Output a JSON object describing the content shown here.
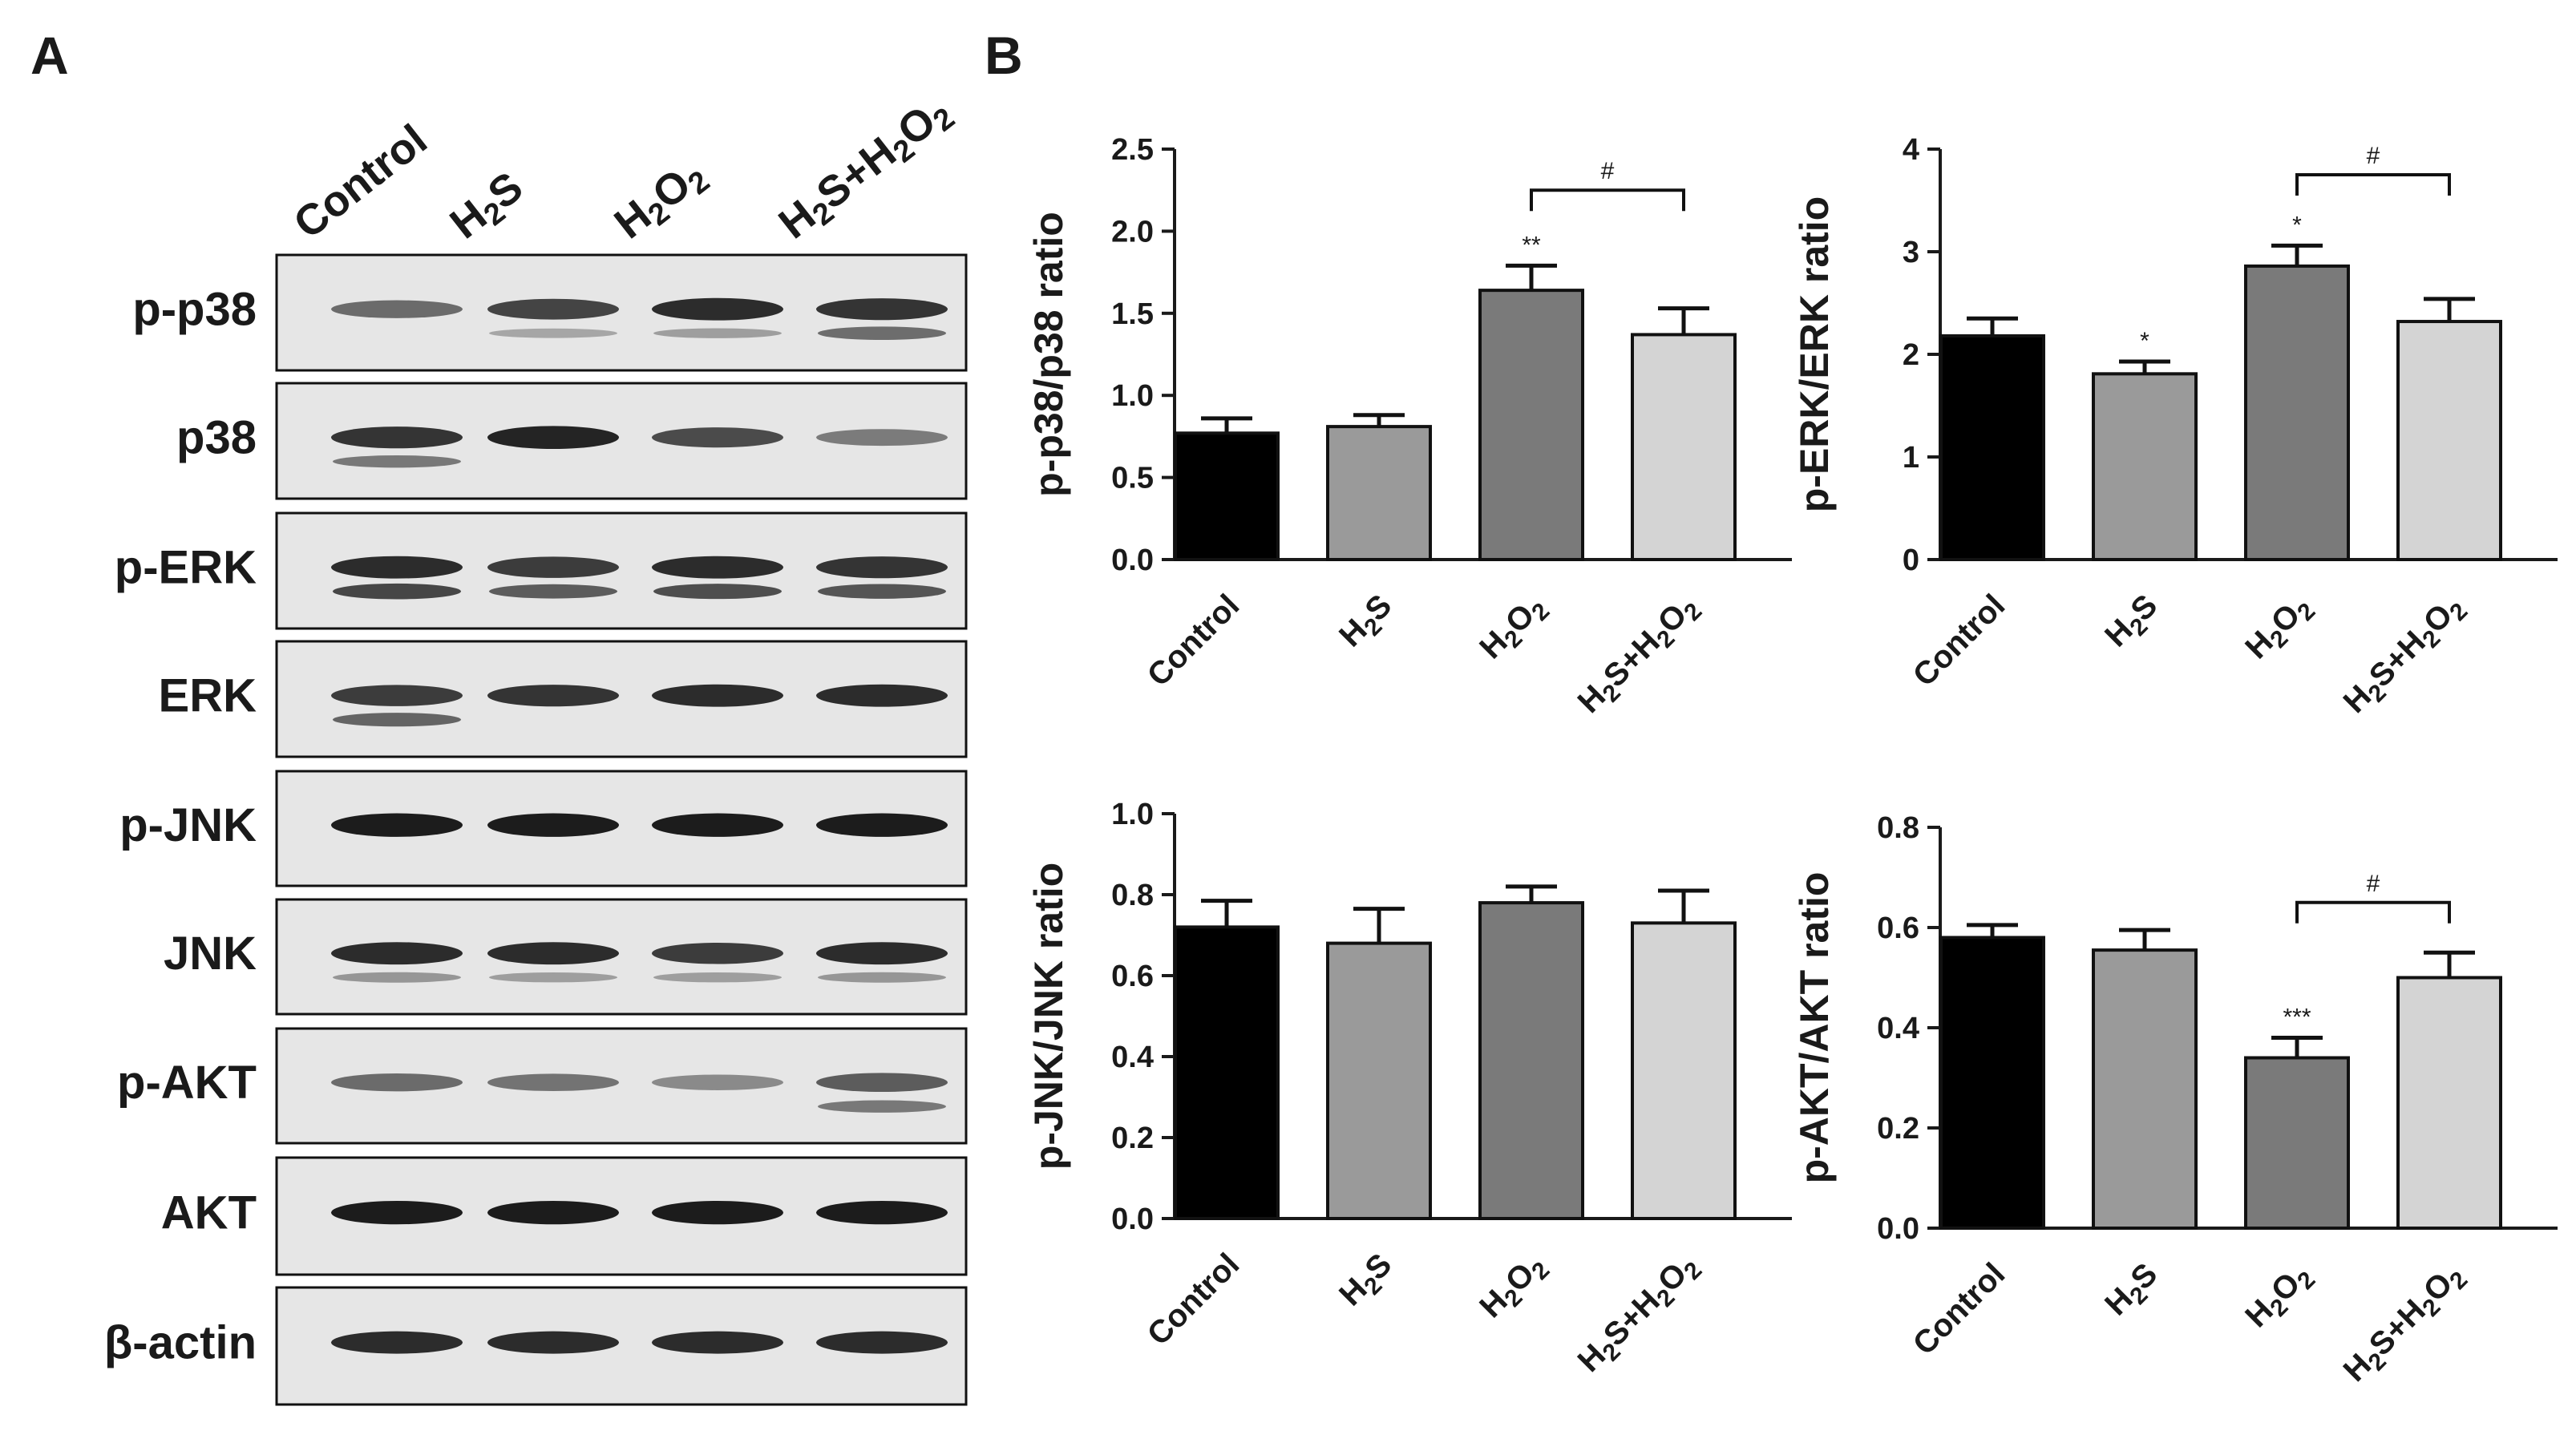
{
  "figure": {
    "panel_a_letter": "A",
    "panel_b_letter": "B"
  },
  "blot": {
    "lanes": [
      "Control",
      "H2S",
      "H2O2",
      "H2S+H2O2"
    ],
    "rows": [
      {
        "label": "p-p38",
        "intensity": [
          0.45,
          0.7,
          0.85,
          0.8
        ],
        "lower_band": [
          0,
          0.15,
          0.2,
          0.55
        ]
      },
      {
        "label": "p38",
        "intensity": [
          0.8,
          0.9,
          0.65,
          0.35
        ],
        "lower_band": [
          0.45,
          0,
          0,
          0
        ]
      },
      {
        "label": "p-ERK",
        "intensity": [
          0.85,
          0.75,
          0.85,
          0.8
        ],
        "lower_band": [
          0.8,
          0.65,
          0.75,
          0.7
        ]
      },
      {
        "label": "ERK",
        "intensity": [
          0.75,
          0.8,
          0.85,
          0.85
        ],
        "lower_band": [
          0.6,
          0,
          0,
          0
        ]
      },
      {
        "label": "p-JNK",
        "intensity": [
          0.95,
          0.95,
          0.95,
          0.95
        ],
        "lower_band": [
          0,
          0,
          0,
          0
        ]
      },
      {
        "label": "JNK",
        "intensity": [
          0.85,
          0.85,
          0.75,
          0.85
        ],
        "lower_band": [
          0.25,
          0.2,
          0.2,
          0.25
        ]
      },
      {
        "label": "p-AKT",
        "intensity": [
          0.45,
          0.4,
          0.25,
          0.55
        ],
        "lower_band": [
          0,
          0,
          0,
          0.45
        ]
      },
      {
        "label": "AKT",
        "intensity": [
          0.95,
          0.95,
          0.95,
          0.95
        ],
        "lower_band": [
          0,
          0,
          0,
          0
        ]
      },
      {
        "label": "β-actin",
        "intensity": [
          0.85,
          0.85,
          0.85,
          0.85
        ],
        "lower_band": [
          0,
          0,
          0,
          0
        ]
      }
    ]
  },
  "colors": {
    "bar_fills": [
      "#000000",
      "#9a9a9a",
      "#7a7a7a",
      "#d4d4d4"
    ],
    "axis": "#1a1a1a",
    "blot_background": "#e6e6e6",
    "band": "#141414"
  },
  "chart_data": [
    {
      "type": "bar",
      "categories": [
        "Control",
        "H2S",
        "H2O2",
        "H2S+H2O2"
      ],
      "values": [
        0.77,
        0.81,
        1.64,
        1.37
      ],
      "errors": [
        0.09,
        0.07,
        0.15,
        0.16
      ],
      "ylabel": "p-p38/p38 ratio",
      "ylim": [
        0,
        2.5
      ],
      "yticks": [
        "0.0",
        "0.5",
        "1.0",
        "1.5",
        "2.0",
        "2.5"
      ],
      "significance": [
        "",
        "",
        "**",
        ""
      ],
      "comparisons": [
        {
          "from": 2,
          "to": 3,
          "label": "#",
          "y": 2.25
        }
      ]
    },
    {
      "type": "bar",
      "categories": [
        "Control",
        "H2S",
        "H2O2",
        "H2S+H2O2"
      ],
      "values": [
        2.18,
        1.81,
        2.86,
        2.32
      ],
      "errors": [
        0.17,
        0.12,
        0.2,
        0.22
      ],
      "ylabel": "p-ERK/ERK ratio",
      "ylim": [
        0,
        4
      ],
      "yticks": [
        "0",
        "1",
        "2",
        "3",
        "4"
      ],
      "significance": [
        "",
        "*",
        "*",
        ""
      ],
      "comparisons": [
        {
          "from": 2,
          "to": 3,
          "label": "#",
          "y": 3.75
        }
      ]
    },
    {
      "type": "bar",
      "categories": [
        "Control",
        "H2S",
        "H2O2",
        "H2S+H2O2"
      ],
      "values": [
        0.72,
        0.68,
        0.78,
        0.73
      ],
      "errors": [
        0.065,
        0.085,
        0.04,
        0.08
      ],
      "ylabel": "p-JNK/JNK ratio",
      "ylim": [
        0,
        1.0
      ],
      "yticks": [
        "0.0",
        "0.2",
        "0.4",
        "0.6",
        "0.8",
        "1.0"
      ],
      "significance": [
        "",
        "",
        "",
        ""
      ],
      "comparisons": []
    },
    {
      "type": "bar",
      "categories": [
        "Control",
        "H2S",
        "H2O2",
        "H2S+H2O2"
      ],
      "values": [
        0.58,
        0.555,
        0.34,
        0.5
      ],
      "errors": [
        0.025,
        0.04,
        0.04,
        0.05
      ],
      "ylabel": "p-AKT/AKT ratio",
      "ylim": [
        0,
        0.8
      ],
      "yticks": [
        "0.0",
        "0.2",
        "0.4",
        "0.6",
        "0.8"
      ],
      "significance": [
        "",
        "",
        "***",
        ""
      ],
      "comparisons": [
        {
          "from": 2,
          "to": 3,
          "label": "#",
          "y": 0.65
        }
      ]
    }
  ]
}
